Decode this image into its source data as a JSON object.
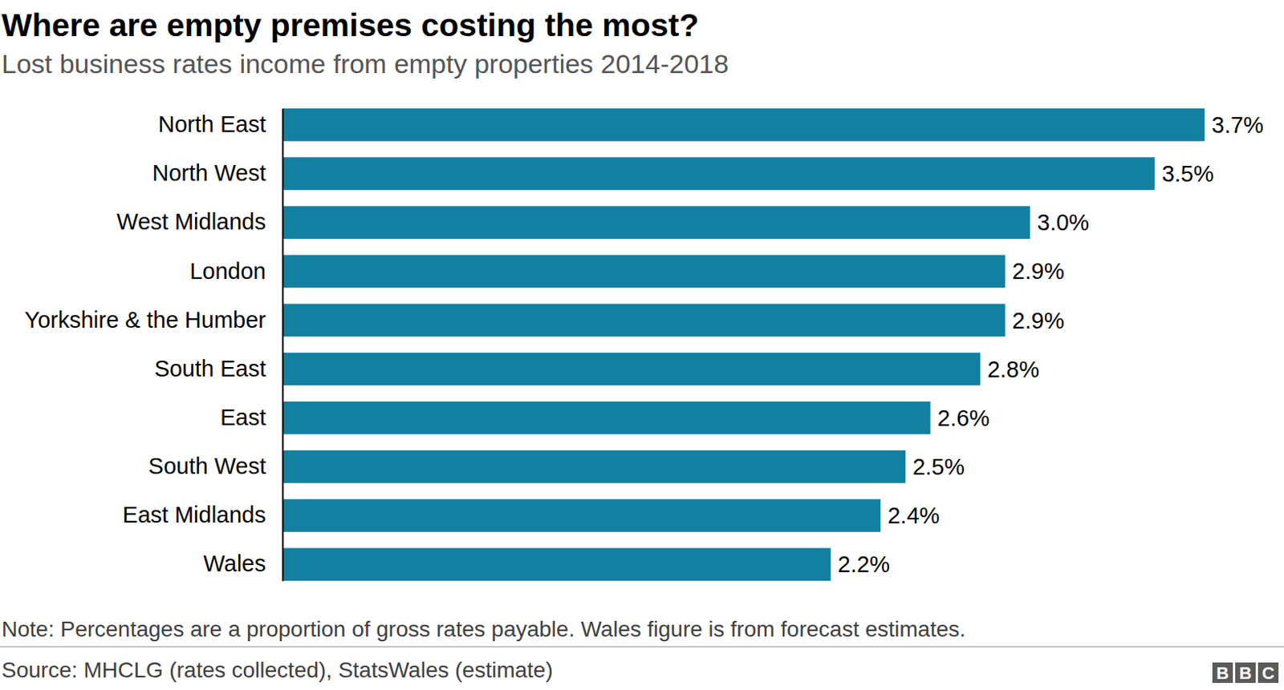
{
  "chart_data": {
    "type": "bar",
    "orientation": "horizontal",
    "title": "Where are empty premises costing the most?",
    "subtitle": "Lost business rates income from empty properties 2014-2018",
    "categories": [
      "North East",
      "North West",
      "West Midlands",
      "London",
      "Yorkshire & the Humber",
      "South East",
      "East",
      "South West",
      "East Midlands",
      "Wales"
    ],
    "values": [
      3.7,
      3.5,
      3.0,
      2.9,
      2.9,
      2.8,
      2.6,
      2.5,
      2.4,
      2.2
    ],
    "value_labels": [
      "3.7%",
      "3.5%",
      "3.0%",
      "2.9%",
      "2.9%",
      "2.8%",
      "2.6%",
      "2.5%",
      "2.4%",
      "2.2%"
    ],
    "color": "#1380a1",
    "xlim": [
      0,
      3.7
    ],
    "xticks": [],
    "grid": false,
    "data_labels": true,
    "tick_labels": "y",
    "note": "Note: Percentages are a proportion of gross rates payable. Wales figure is from forecast estimates.",
    "source": "Source: MHCLG (rates collected), StatsWales (estimate)",
    "logo": "BBC"
  }
}
